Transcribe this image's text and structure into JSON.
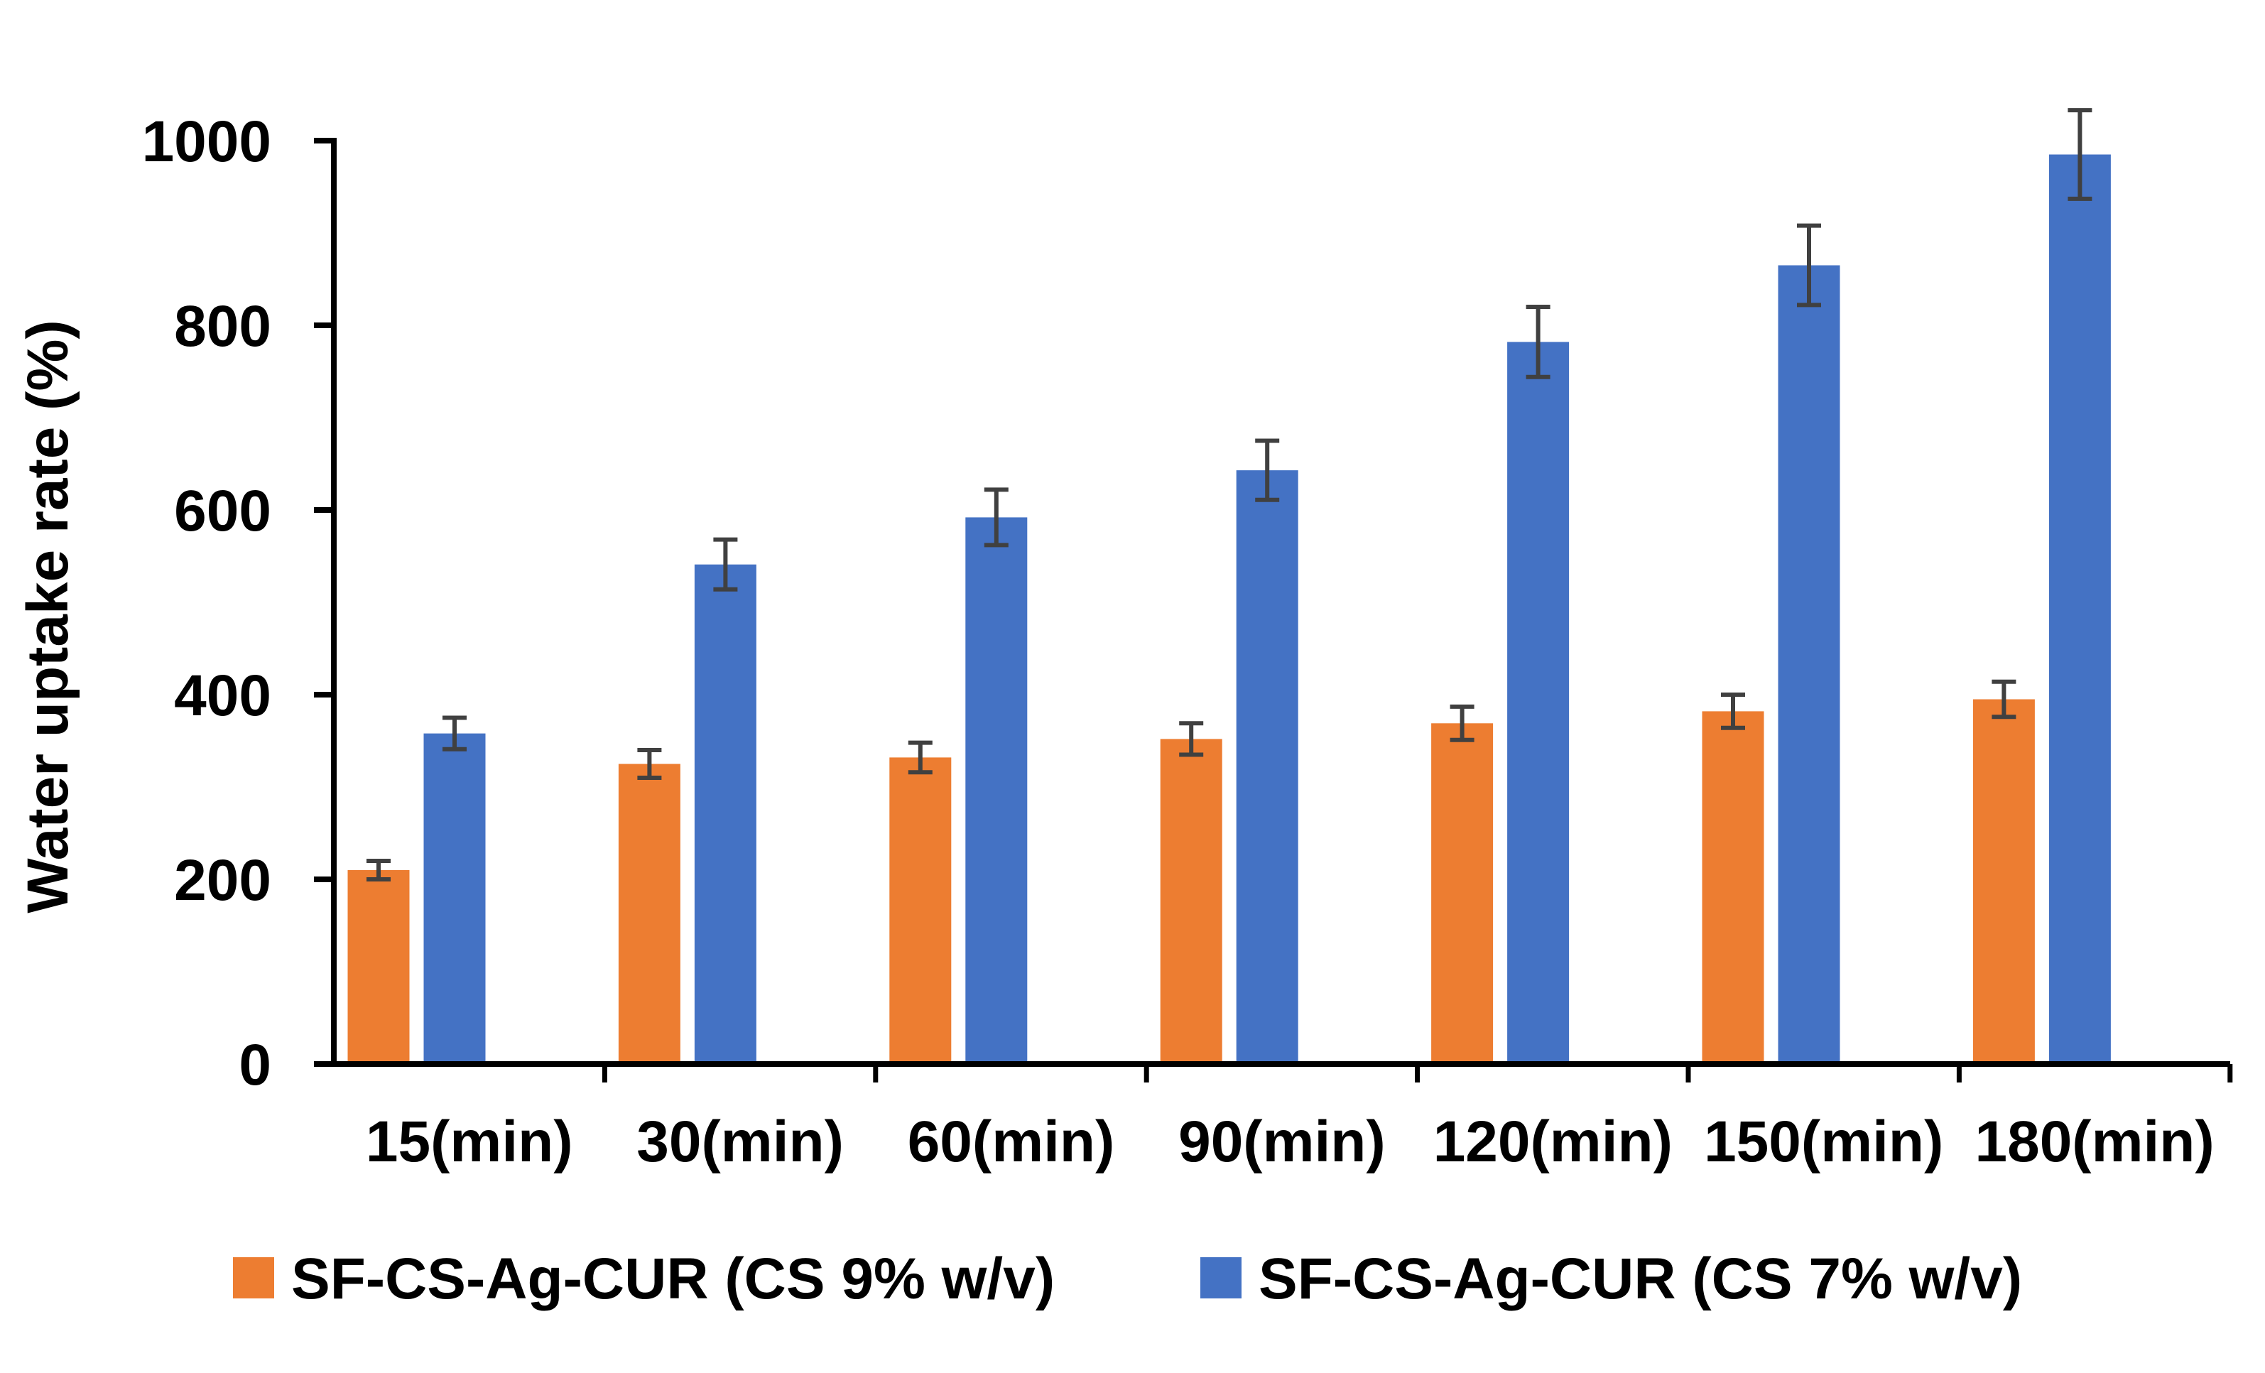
{
  "chart_data": {
    "type": "bar",
    "title": "",
    "xlabel": "",
    "ylabel": "Water uptake rate (%)",
    "categories": [
      "15(min)",
      "30(min)",
      "60(min)",
      "90(min)",
      "120(min)",
      "150(min)",
      "180(min)"
    ],
    "ylim": [
      0,
      1000
    ],
    "yticks": [
      0,
      200,
      400,
      600,
      800,
      1000
    ],
    "ytick_labels": [
      "0",
      "200",
      "400",
      "600",
      "800",
      "1000"
    ],
    "grid": false,
    "legend_position": "bottom",
    "series": [
      {
        "name": "SF-CS-Ag-CUR (CS 9% w/v)",
        "color": "#ED7D31",
        "values": [
          210,
          325,
          332,
          352,
          369,
          382,
          395
        ],
        "errors": [
          10,
          15,
          16,
          17,
          18,
          18,
          19
        ]
      },
      {
        "name": "SF-CS-Ag-CUR (CS 7% w/v)",
        "color": "#4472C4",
        "values": [
          358,
          541,
          592,
          643,
          782,
          865,
          985
        ],
        "errors": [
          17,
          27,
          30,
          32,
          38,
          43,
          48
        ]
      }
    ],
    "error_bar_color": "#404040",
    "axis_color": "#000000"
  }
}
